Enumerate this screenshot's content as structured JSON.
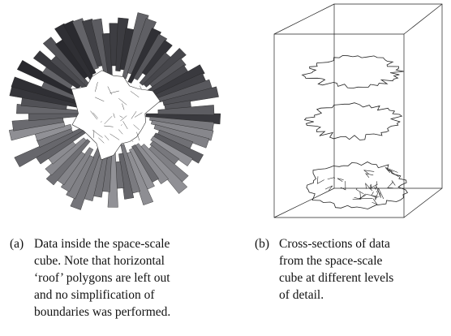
{
  "figures": [
    {
      "label": "(a)",
      "caption_lines": [
        "Data inside the space-scale",
        "cube. Note that horizontal",
        "‘roof’ polygons are left out",
        "and no simplification of",
        "boundaries was performed."
      ]
    },
    {
      "label": "(b)",
      "caption_lines": [
        "Cross-sections of data",
        "from the space-scale",
        "cube at different levels",
        "of detail."
      ]
    }
  ]
}
